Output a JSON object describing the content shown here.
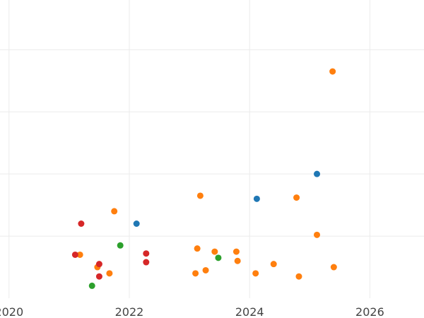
{
  "chart_data": {
    "type": "scatter",
    "title": "",
    "xlabel": "",
    "ylabel": "",
    "xlim": [
      2019.85,
      2026.9
    ],
    "ylim": [
      -0.2,
      4.6
    ],
    "grid": true,
    "legend": "none",
    "x_ticks": [
      {
        "value": 2020,
        "label": "2020"
      },
      {
        "value": 2022,
        "label": "2022"
      },
      {
        "value": 2024,
        "label": "2024"
      },
      {
        "value": 2026,
        "label": "2026"
      }
    ],
    "y_grid_values": [
      0.8,
      1.8,
      2.8,
      3.8
    ],
    "series": [
      {
        "color": "#1f77b4",
        "points": [
          {
            "x": 2022.12,
            "y": 1.0
          },
          {
            "x": 2024.12,
            "y": 1.4
          },
          {
            "x": 2025.12,
            "y": 1.8
          }
        ]
      },
      {
        "color": "#ff7f0e",
        "points": [
          {
            "x": 2021.18,
            "y": 0.5
          },
          {
            "x": 2021.47,
            "y": 0.3
          },
          {
            "x": 2021.67,
            "y": 0.2
          },
          {
            "x": 2021.75,
            "y": 1.2
          },
          {
            "x": 2023.1,
            "y": 0.2
          },
          {
            "x": 2023.13,
            "y": 0.6
          },
          {
            "x": 2023.18,
            "y": 1.45
          },
          {
            "x": 2023.27,
            "y": 0.25
          },
          {
            "x": 2023.42,
            "y": 0.55
          },
          {
            "x": 2023.78,
            "y": 0.55
          },
          {
            "x": 2023.8,
            "y": 0.4
          },
          {
            "x": 2024.1,
            "y": 0.2
          },
          {
            "x": 2024.4,
            "y": 0.35
          },
          {
            "x": 2024.78,
            "y": 1.42
          },
          {
            "x": 2024.82,
            "y": 0.15
          },
          {
            "x": 2025.12,
            "y": 0.82
          },
          {
            "x": 2025.38,
            "y": 3.45
          },
          {
            "x": 2025.4,
            "y": 0.3
          }
        ]
      },
      {
        "color": "#2ca02c",
        "points": [
          {
            "x": 2021.38,
            "y": 0.0
          },
          {
            "x": 2021.85,
            "y": 0.65
          },
          {
            "x": 2023.48,
            "y": 0.45
          }
        ]
      },
      {
        "color": "#d62728",
        "points": [
          {
            "x": 2021.1,
            "y": 0.5
          },
          {
            "x": 2021.2,
            "y": 1.0
          },
          {
            "x": 2021.5,
            "y": 0.35
          },
          {
            "x": 2021.5,
            "y": 0.15
          },
          {
            "x": 2022.28,
            "y": 0.52
          },
          {
            "x": 2022.28,
            "y": 0.38
          }
        ]
      }
    ]
  }
}
